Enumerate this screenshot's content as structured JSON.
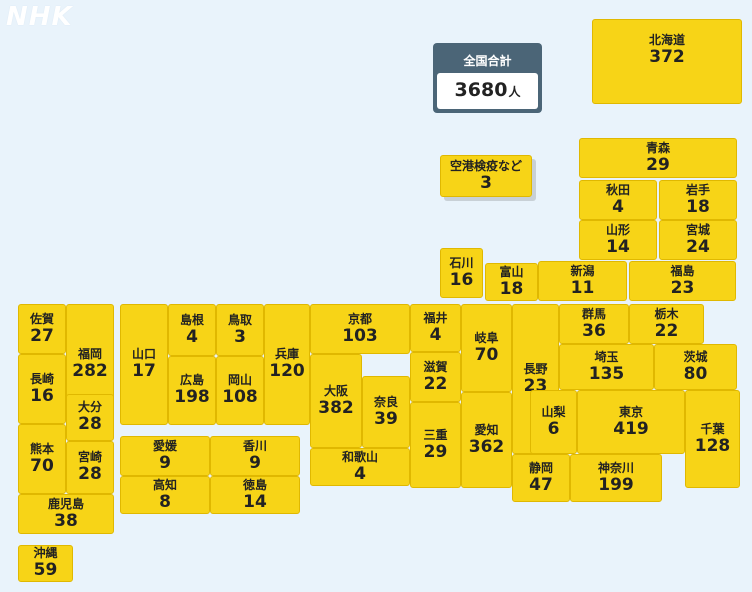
{
  "logo": "NHK",
  "total": {
    "label": "全国合計",
    "value": "3680",
    "unit": "人"
  },
  "airport": {
    "name": "空港検疫など",
    "count": "3"
  },
  "prefectures": [
    {
      "name": "北海道",
      "count": "372"
    },
    {
      "name": "青森",
      "count": "29"
    },
    {
      "name": "秋田",
      "count": "4"
    },
    {
      "name": "岩手",
      "count": "18"
    },
    {
      "name": "山形",
      "count": "14"
    },
    {
      "name": "宮城",
      "count": "24"
    },
    {
      "name": "石川",
      "count": "16"
    },
    {
      "name": "富山",
      "count": "18"
    },
    {
      "name": "新潟",
      "count": "11"
    },
    {
      "name": "福島",
      "count": "23"
    },
    {
      "name": "佐賀",
      "count": "27"
    },
    {
      "name": "福岡",
      "count": "282"
    },
    {
      "name": "長崎",
      "count": "16"
    },
    {
      "name": "大分",
      "count": "28"
    },
    {
      "name": "熊本",
      "count": "70"
    },
    {
      "name": "宮崎",
      "count": "28"
    },
    {
      "name": "鹿児島",
      "count": "38"
    },
    {
      "name": "沖縄",
      "count": "59"
    },
    {
      "name": "山口",
      "count": "17"
    },
    {
      "name": "島根",
      "count": "4"
    },
    {
      "name": "鳥取",
      "count": "3"
    },
    {
      "name": "広島",
      "count": "198"
    },
    {
      "name": "岡山",
      "count": "108"
    },
    {
      "name": "兵庫",
      "count": "120"
    },
    {
      "name": "愛媛",
      "count": "9"
    },
    {
      "name": "香川",
      "count": "9"
    },
    {
      "name": "高知",
      "count": "8"
    },
    {
      "name": "徳島",
      "count": "14"
    },
    {
      "name": "京都",
      "count": "103"
    },
    {
      "name": "大阪",
      "count": "382"
    },
    {
      "name": "奈良",
      "count": "39"
    },
    {
      "name": "和歌山",
      "count": "4"
    },
    {
      "name": "福井",
      "count": "4"
    },
    {
      "name": "滋賀",
      "count": "22"
    },
    {
      "name": "三重",
      "count": "29"
    },
    {
      "name": "岐阜",
      "count": "70"
    },
    {
      "name": "愛知",
      "count": "362"
    },
    {
      "name": "長野",
      "count": "23"
    },
    {
      "name": "群馬",
      "count": "36"
    },
    {
      "name": "栃木",
      "count": "22"
    },
    {
      "name": "埼玉",
      "count": "135"
    },
    {
      "name": "茨城",
      "count": "80"
    },
    {
      "name": "山梨",
      "count": "6"
    },
    {
      "name": "東京",
      "count": "419"
    },
    {
      "name": "千葉",
      "count": "128"
    },
    {
      "name": "静岡",
      "count": "47"
    },
    {
      "name": "神奈川",
      "count": "199"
    }
  ]
}
